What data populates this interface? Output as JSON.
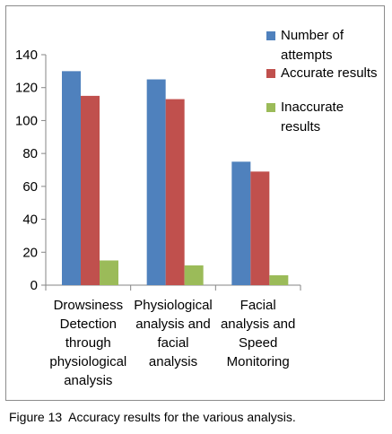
{
  "caption": "Figure 13  Accuracy results for the various analysis.",
  "chart_data": {
    "type": "bar",
    "categories": [
      [
        "Drowsiness",
        "Detection",
        "through",
        "physiological",
        "analysis"
      ],
      [
        "Physiological",
        "analysis and",
        "facial",
        "analysis"
      ],
      [
        "Facial",
        "analysis and",
        "Speed",
        "Monitoring"
      ]
    ],
    "series": [
      {
        "name": [
          "Number of",
          "attempts"
        ],
        "values": [
          130,
          125,
          75
        ],
        "color": "#4f81bd"
      },
      {
        "name": [
          "Accurate results"
        ],
        "values": [
          115,
          113,
          69
        ],
        "color": "#c0504d"
      },
      {
        "name": [
          "Inaccurate",
          "results"
        ],
        "values": [
          15,
          12,
          6
        ],
        "color": "#9bbb59"
      }
    ],
    "ylim": [
      0,
      140
    ],
    "yticks": [
      "0",
      "20",
      "40",
      "60",
      "80",
      "100",
      "120",
      "140"
    ],
    "grid": false,
    "legend": "right"
  }
}
